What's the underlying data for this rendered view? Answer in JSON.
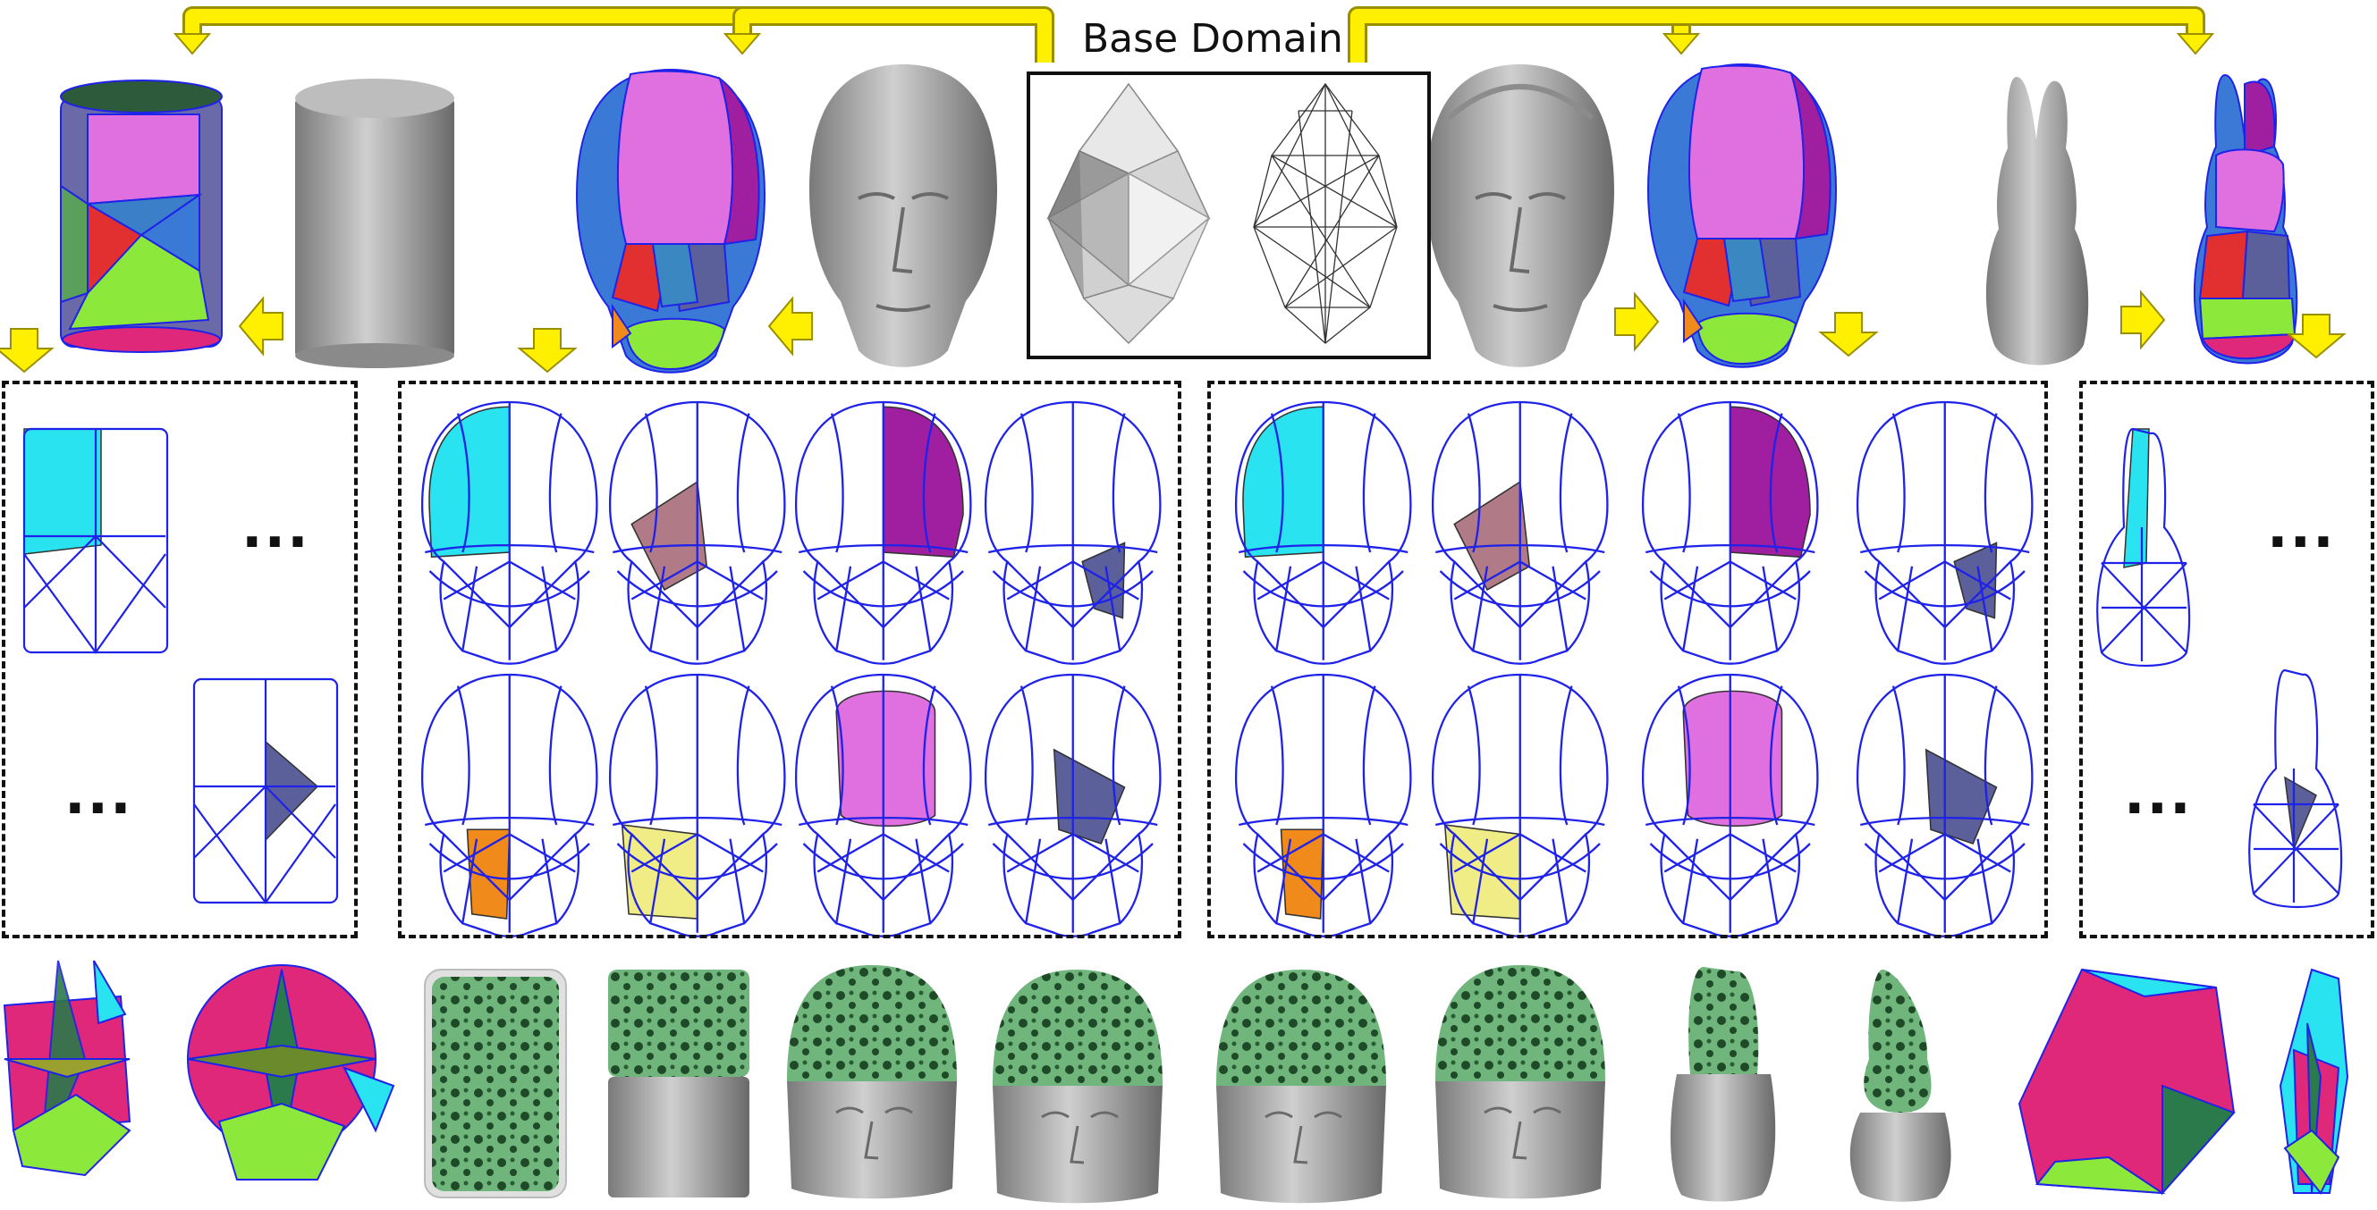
{
  "figure": {
    "base_domain_label": "Base Domain",
    "ellipsis": "...",
    "colors": {
      "arrow_fill": "#ffef00",
      "arrow_stroke": "#9a8f00",
      "wire": "#1f22e8",
      "gray_mesh": "#a8a8a8",
      "lattice_green": "#5fa86d",
      "patch_pink": "#e070e0",
      "patch_cyan": "#29e3f0",
      "patch_purple": "#a01ea0",
      "patch_slate": "#5b5f9a",
      "patch_orange": "#f08a1a",
      "patch_yellow": "#f0ec86",
      "patch_mauve": "#b07a86",
      "patch_red": "#e23030",
      "patch_lime": "#8ce83a",
      "patch_blue": "#3a7ad6",
      "patch_magenta": "#e0287a"
    },
    "shapes": [
      "cylinder",
      "max-planck-head",
      "igea-head",
      "bunny"
    ],
    "patch_grid_columns": 4
  }
}
